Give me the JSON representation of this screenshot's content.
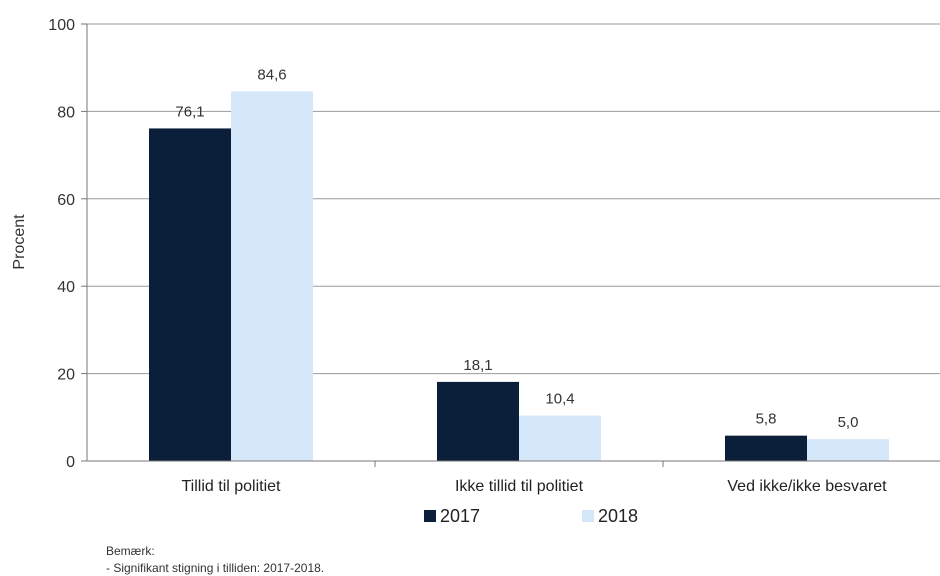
{
  "chart_data": {
    "type": "bar",
    "categories": [
      "Tillid til politiet",
      "Ikke tillid til politiet",
      "Ved ikke/ikke besvaret"
    ],
    "series": [
      {
        "name": "2017",
        "color": "#0b1f3a",
        "values": [
          76.1,
          18.1,
          5.8
        ],
        "labels": [
          "76,1",
          "18,1",
          "5,8"
        ]
      },
      {
        "name": "2018",
        "color": "#d4e8f9",
        "values": [
          84.6,
          10.4,
          5.0
        ],
        "labels": [
          "84,6",
          "10,4",
          "5,0"
        ]
      }
    ],
    "ylabel": "Procent",
    "ylim": [
      0,
      100
    ],
    "yticks": [
      0,
      20,
      40,
      60,
      80,
      100
    ],
    "grid": true,
    "legend_position": "bottom"
  },
  "note": {
    "title": "Bemærk:",
    "line": "- Signifikant stigning  i tilliden: 2017-2018."
  }
}
